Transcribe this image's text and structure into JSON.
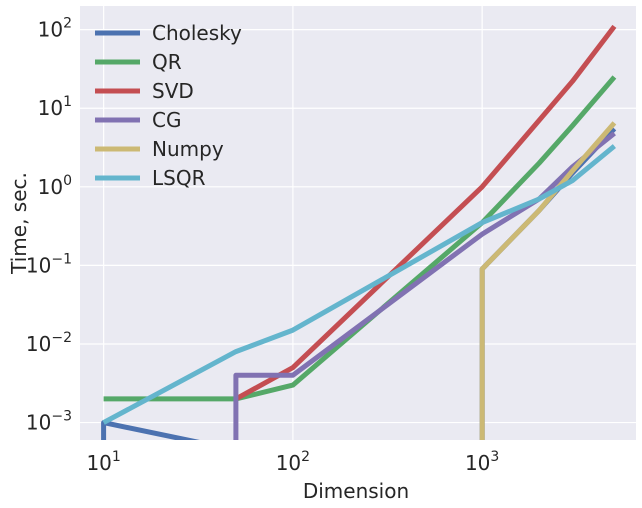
{
  "chart_data": {
    "type": "line",
    "xlabel": "Dimension",
    "ylabel": "Time, sec.",
    "xscale": "log",
    "yscale": "log",
    "xlim": [
      7.5,
      6500
    ],
    "ylim": [
      0.0006,
      200
    ],
    "x_ticks": [
      {
        "base": "10",
        "exp": "1",
        "value": 10
      },
      {
        "base": "10",
        "exp": "2",
        "value": 100
      },
      {
        "base": "10",
        "exp": "3",
        "value": 1000
      }
    ],
    "y_ticks": [
      {
        "base": "10",
        "exp": "−3",
        "value": 0.001
      },
      {
        "base": "10",
        "exp": "−2",
        "value": 0.01
      },
      {
        "base": "10",
        "exp": "−1",
        "value": 0.1
      },
      {
        "base": "10",
        "exp": "0",
        "value": 1
      },
      {
        "base": "10",
        "exp": "1",
        "value": 10
      },
      {
        "base": "10",
        "exp": "2",
        "value": 100
      }
    ],
    "grid": true,
    "legend_position": "top-left",
    "background": "#EAEAF2",
    "series": [
      {
        "name": "Cholesky",
        "color": "#4C72B0",
        "x": [
          10,
          10,
          1000,
          1000,
          2000,
          3000,
          5000
        ],
        "y": [
          0.0001,
          0.001,
          0.0001,
          0.09,
          0.5,
          1.5,
          5.5
        ]
      },
      {
        "name": "QR",
        "color": "#55A868",
        "x": [
          10,
          50,
          100,
          1000,
          2000,
          3000,
          5000
        ],
        "y": [
          0.002,
          0.002,
          0.003,
          0.35,
          2.0,
          6.0,
          25
        ]
      },
      {
        "name": "SVD",
        "color": "#C44E52",
        "x": [
          50,
          100,
          1000,
          2000,
          3000,
          5000
        ],
        "y": [
          0.002,
          0.005,
          1.0,
          7.0,
          22,
          110
        ]
      },
      {
        "name": "CG",
        "color": "#8172B2",
        "x": [
          50,
          50,
          100,
          1000,
          2000,
          3000,
          5000
        ],
        "y": [
          0.0001,
          0.004,
          0.004,
          0.25,
          0.7,
          1.8,
          4.8
        ]
      },
      {
        "name": "Numpy",
        "color": "#CCB974",
        "x": [
          1000,
          1000,
          2000,
          3000,
          5000
        ],
        "y": [
          0.0001,
          0.09,
          0.5,
          1.6,
          6.5
        ]
      },
      {
        "name": "LSQR",
        "color": "#64B5CD",
        "x": [
          10,
          50,
          100,
          1000,
          2000,
          3000,
          5000
        ],
        "y": [
          0.001,
          0.008,
          0.015,
          0.35,
          0.7,
          1.2,
          3.3
        ]
      }
    ]
  }
}
